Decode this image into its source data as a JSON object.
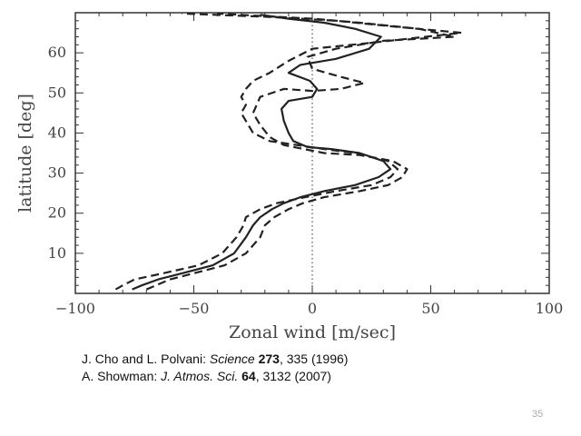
{
  "chart_data": {
    "type": "line",
    "xlabel": "Zonal wind [m/sec]",
    "ylabel": "latitude [deg]",
    "xlim": [
      -100,
      100
    ],
    "ylim": [
      0,
      70
    ],
    "xticks": [
      -100,
      -50,
      0,
      50,
      100
    ],
    "yticks": [
      10,
      20,
      30,
      40,
      50,
      60
    ],
    "zero_line": {
      "x": 0,
      "style": "dotted"
    },
    "series": [
      {
        "style": "solid",
        "points": [
          [
            -76,
            1
          ],
          [
            -72,
            2
          ],
          [
            -65,
            3.5
          ],
          [
            -55,
            5
          ],
          [
            -42,
            7
          ],
          [
            -33,
            10
          ],
          [
            -28,
            14
          ],
          [
            -25,
            17
          ],
          [
            -22,
            19
          ],
          [
            -17,
            21
          ],
          [
            -12,
            22.5
          ],
          [
            -5,
            24
          ],
          [
            5,
            25.5
          ],
          [
            18,
            27
          ],
          [
            28,
            29
          ],
          [
            33,
            31
          ],
          [
            30,
            33
          ],
          [
            20,
            35
          ],
          [
            8,
            36
          ],
          [
            -2,
            36.5
          ],
          [
            -8,
            38
          ],
          [
            -10,
            40
          ],
          [
            -12,
            43
          ],
          [
            -13,
            46
          ],
          [
            -10,
            48
          ],
          [
            0,
            49
          ],
          [
            2,
            51
          ],
          [
            -1,
            53
          ],
          [
            -10,
            55
          ],
          [
            -5,
            57
          ],
          [
            10,
            58.5
          ],
          [
            24,
            61
          ],
          [
            29,
            64
          ],
          [
            18,
            66
          ],
          [
            5,
            67.5
          ],
          [
            -10,
            68.5
          ],
          [
            -22,
            69.5
          ]
        ]
      },
      {
        "style": "dashed",
        "points": [
          [
            -70,
            1
          ],
          [
            -66,
            2
          ],
          [
            -60,
            3.5
          ],
          [
            -50,
            5
          ],
          [
            -37,
            7
          ],
          [
            -28,
            10
          ],
          [
            -22,
            14
          ],
          [
            -20,
            17
          ],
          [
            -16,
            19
          ],
          [
            -10,
            21
          ],
          [
            -4,
            22.5
          ],
          [
            5,
            24
          ],
          [
            20,
            25.5
          ],
          [
            32,
            27
          ],
          [
            38,
            29
          ],
          [
            40,
            31
          ],
          [
            34,
            33
          ],
          [
            20,
            34.5
          ],
          [
            5,
            35
          ],
          [
            -12,
            37
          ],
          [
            -18,
            39
          ],
          [
            -22,
            42
          ],
          [
            -25,
            45
          ],
          [
            -22,
            49
          ],
          [
            -12,
            51
          ],
          [
            0,
            50.5
          ],
          [
            12,
            51
          ],
          [
            22,
            52.5
          ],
          [
            12,
            54
          ],
          [
            0,
            56
          ],
          [
            -2,
            59
          ],
          [
            10,
            61
          ],
          [
            30,
            63
          ],
          [
            60,
            64
          ],
          [
            45,
            66
          ],
          [
            20,
            67.5
          ],
          [
            0,
            68.5
          ],
          [
            -40,
            69.8
          ]
        ]
      },
      {
        "style": "dashed",
        "points": [
          [
            -83,
            1
          ],
          [
            -80,
            2
          ],
          [
            -75,
            3.5
          ],
          [
            -63,
            5
          ],
          [
            -48,
            7
          ],
          [
            -38,
            10
          ],
          [
            -32,
            14
          ],
          [
            -29,
            17
          ],
          [
            -28,
            19
          ],
          [
            -22,
            21
          ],
          [
            -15,
            22.5
          ],
          [
            -3,
            24
          ],
          [
            10,
            25.5
          ],
          [
            25,
            27
          ],
          [
            33,
            29
          ],
          [
            36,
            31
          ],
          [
            32,
            33
          ],
          [
            18,
            35
          ],
          [
            5,
            36
          ],
          [
            -18,
            38
          ],
          [
            -25,
            40
          ],
          [
            -28,
            43
          ],
          [
            -30,
            45
          ],
          [
            -28,
            47
          ],
          [
            -30,
            49
          ],
          [
            -28,
            51
          ],
          [
            -25,
            53
          ],
          [
            -18,
            55
          ],
          [
            -10,
            58
          ],
          [
            0,
            61
          ],
          [
            25,
            62.5
          ],
          [
            63,
            65
          ],
          [
            35,
            66.5
          ],
          [
            10,
            68
          ],
          [
            -20,
            69
          ],
          [
            -55,
            69.8
          ]
        ]
      }
    ]
  },
  "references": [
    {
      "parts": [
        {
          "text": "J. Cho and L. Polvani: ",
          "style": "normal"
        },
        {
          "text": "Science",
          "style": "italic"
        },
        {
          "text": " ",
          "style": "normal"
        },
        {
          "text": "273",
          "style": "bold"
        },
        {
          "text": ", 335 (1996)",
          "style": "normal"
        }
      ]
    },
    {
      "parts": [
        {
          "text": "A. Showman: ",
          "style": "normal"
        },
        {
          "text": "J. Atmos. Sci.",
          "style": "italic"
        },
        {
          "text": " ",
          "style": "normal"
        },
        {
          "text": "64",
          "style": "bold"
        },
        {
          "text": ", 3132 (2007)",
          "style": "normal"
        }
      ]
    }
  ],
  "page_number": "35"
}
